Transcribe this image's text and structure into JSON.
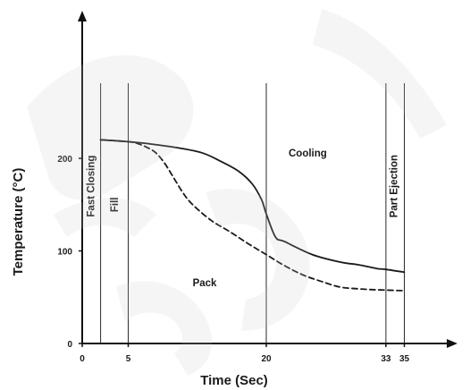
{
  "chart_data": {
    "type": "line",
    "title": "",
    "xlabel": "Time (Sec)",
    "ylabel": "Temperature (°C)",
    "xlim": [
      0,
      38
    ],
    "ylim": [
      0,
      240
    ],
    "x_ticks": [
      0,
      5,
      20,
      33,
      35
    ],
    "x_tick_labels": [
      "0",
      "5",
      "20",
      "33",
      "35"
    ],
    "y_ticks": [
      0,
      100,
      200
    ],
    "y_tick_labels": [
      "0",
      "100",
      "200"
    ],
    "grid": false,
    "phase_boundaries": [
      2,
      5,
      20,
      33,
      35
    ],
    "phase_labels": [
      {
        "text": "Fast Closing",
        "orientation": "vertical",
        "x": 1.3,
        "y": 170
      },
      {
        "text": "Fill",
        "orientation": "vertical",
        "x": 3.9,
        "y": 150
      },
      {
        "text": "Cooling",
        "orientation": "horizontal",
        "x": 24.5,
        "y": 202
      },
      {
        "text": "Part Ejection",
        "orientation": "vertical",
        "x": 34.2,
        "y": 170
      },
      {
        "text": "Pack",
        "orientation": "horizontal",
        "x": 13.3,
        "y": 62
      }
    ],
    "series": [
      {
        "style": "solid",
        "color": "#1a1a1a",
        "x": [
          2,
          5,
          7,
          10,
          13,
          15,
          17,
          18.5,
          19.5,
          20,
          21,
          22,
          25,
          28,
          30,
          32,
          33,
          35
        ],
        "y": [
          220,
          218,
          216,
          212,
          206,
          197,
          186,
          172,
          155,
          140,
          115,
          110,
          96,
          88,
          85,
          81,
          80,
          77
        ]
      },
      {
        "style": "dashed",
        "color": "#1a1a1a",
        "x": [
          2,
          5,
          6,
          7,
          8,
          9,
          10,
          11,
          12,
          14,
          16,
          18,
          20,
          22,
          24,
          26,
          28,
          30,
          32,
          35
        ],
        "y": [
          220,
          218,
          216,
          212,
          206,
          194,
          178,
          162,
          150,
          133,
          121,
          108,
          96,
          84,
          74,
          67,
          61,
          59,
          58,
          57
        ]
      }
    ]
  }
}
